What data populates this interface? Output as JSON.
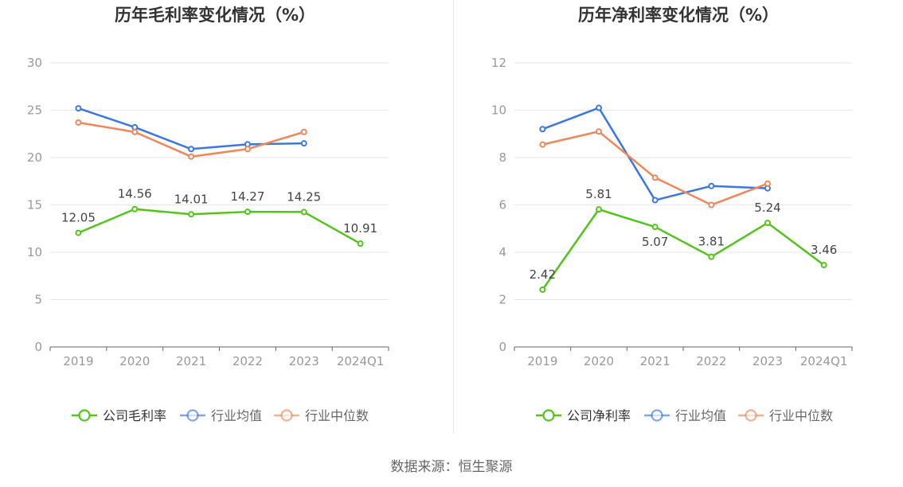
{
  "source_prefix": "数据来源：",
  "source_name": "恒生聚源",
  "chart_data": [
    {
      "type": "line",
      "title": "历年毛利率变化情况（%）",
      "categories": [
        "2019",
        "2020",
        "2021",
        "2022",
        "2023",
        "2024Q1"
      ],
      "ylim": [
        0,
        30
      ],
      "yticks": [
        0,
        5,
        10,
        15,
        20,
        25,
        30
      ],
      "grid": true,
      "legend_position": "bottom",
      "series": [
        {
          "name": "公司毛利率",
          "color": "#52c41a",
          "values": [
            12.05,
            14.56,
            14.01,
            14.27,
            14.25,
            10.91
          ],
          "labels": [
            "12.05",
            "14.56",
            "14.01",
            "14.27",
            "14.25",
            "10.91"
          ]
        },
        {
          "name": "行业均值",
          "color": "#3a78e0",
          "values": [
            25.2,
            23.2,
            20.9,
            21.4,
            21.5,
            null
          ]
        },
        {
          "name": "行业中位数",
          "color": "#f0875a",
          "values": [
            23.7,
            22.7,
            20.1,
            20.9,
            22.7,
            null
          ]
        }
      ]
    },
    {
      "type": "line",
      "title": "历年净利率变化情况（%）",
      "categories": [
        "2019",
        "2020",
        "2021",
        "2022",
        "2023",
        "2024Q1"
      ],
      "ylim": [
        0,
        12
      ],
      "yticks": [
        0,
        2,
        4,
        6,
        8,
        10,
        12
      ],
      "grid": true,
      "legend_position": "bottom",
      "series": [
        {
          "name": "公司净利率",
          "color": "#52c41a",
          "values": [
            2.42,
            5.81,
            5.07,
            3.81,
            5.24,
            3.46
          ],
          "labels": [
            "2.42",
            "5.81",
            "5.07",
            "3.81",
            "5.24",
            "3.46"
          ]
        },
        {
          "name": "行业均值",
          "color": "#3a78e0",
          "values": [
            9.2,
            10.1,
            6.2,
            6.8,
            6.7,
            null
          ]
        },
        {
          "name": "行业中位数",
          "color": "#f0875a",
          "values": [
            8.55,
            9.1,
            7.15,
            6.0,
            6.9,
            null
          ]
        }
      ]
    }
  ]
}
